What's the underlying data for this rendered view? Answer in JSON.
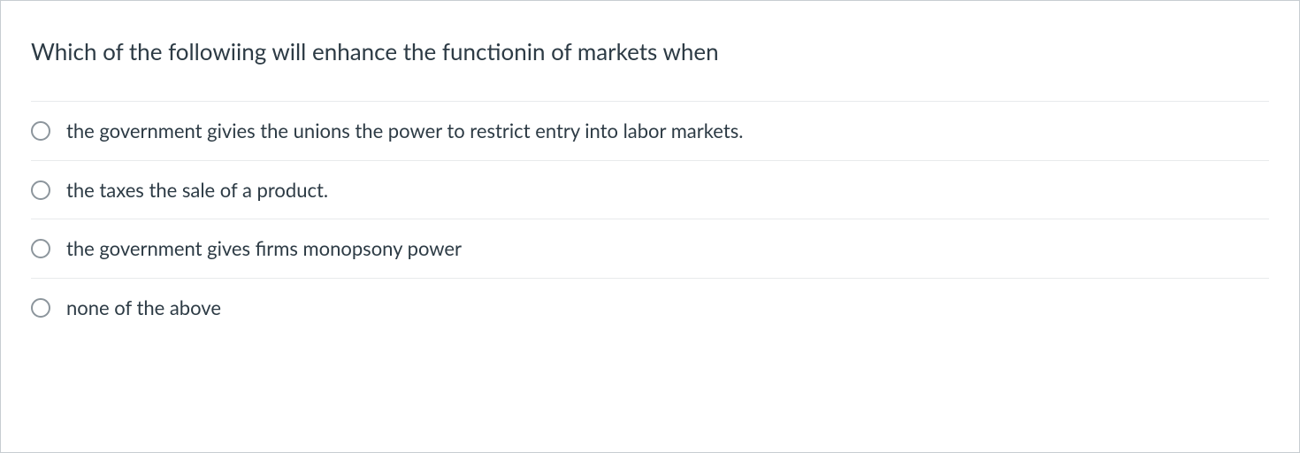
{
  "question": {
    "text": "Which of the followiing will enhance the functionin of markets when",
    "text_color": "#2d3b45",
    "text_fontsize": 26,
    "options": [
      {
        "label": "the government givies the unions the power to restrict entry into labor markets."
      },
      {
        "label": "the taxes the sale of a product."
      },
      {
        "label": "the government gives firms monopsony power"
      },
      {
        "label": "none of the above"
      }
    ],
    "option_text_color": "#2d3b45",
    "option_fontsize": 22,
    "radio_border_color": "#8c959c",
    "divider_color": "#e8eaec",
    "card_border_color": "#c7cdd1",
    "background_color": "#ffffff"
  }
}
